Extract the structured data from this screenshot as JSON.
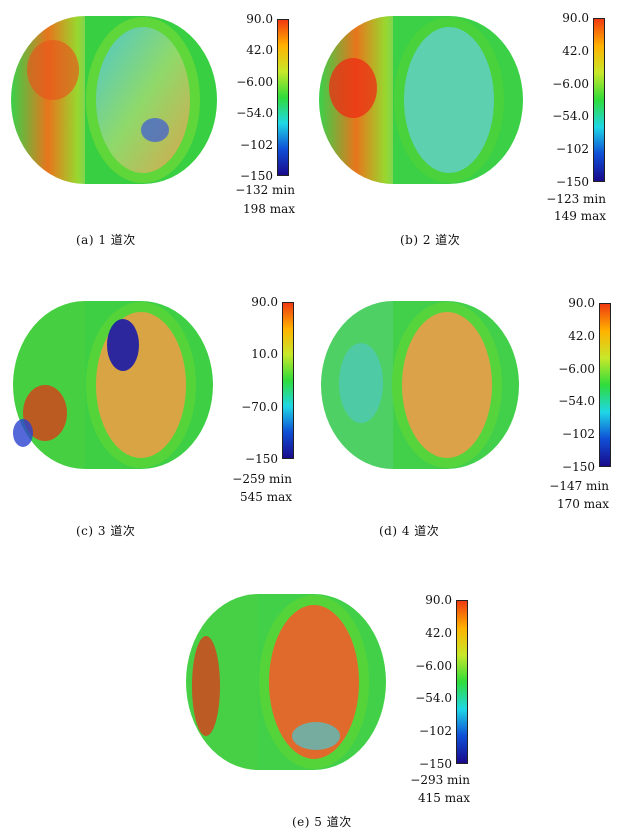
{
  "colorscale": [
    "#1a0a8c",
    "#0f4fd6",
    "#1fd7e6",
    "#2fdc3a",
    "#c8e82a",
    "#ffb200",
    "#f03a10"
  ],
  "panels": [
    {
      "id": "a",
      "caption": "(a) 1 道次",
      "ticks": [
        "90.0",
        "42.0",
        "−6.00",
        "−54.0",
        "−102",
        "−150"
      ],
      "min_label": "−132 min",
      "max_label": "198 max"
    },
    {
      "id": "b",
      "caption": "(b) 2 道次",
      "ticks": [
        "90.0",
        "42.0",
        "−6.00",
        "−54.0",
        "−102",
        "−150"
      ],
      "min_label": "−123 min",
      "max_label": "149 max"
    },
    {
      "id": "c",
      "caption": "(c) 3 道次",
      "ticks": [
        "90.0",
        "10.0",
        "−70.0",
        "−150"
      ],
      "min_label": "−259 min",
      "max_label": "545 max"
    },
    {
      "id": "d",
      "caption": "(d) 4 道次",
      "ticks": [
        "90.0",
        "42.0",
        "−6.00",
        "−54.0",
        "−102",
        "−150"
      ],
      "min_label": "−147 min",
      "max_label": "170 max"
    },
    {
      "id": "e",
      "caption": "(e) 5 道次",
      "ticks": [
        "90.0",
        "42.0",
        "−6.00",
        "−54.0",
        "−102",
        "−150"
      ],
      "min_label": "−293 min",
      "max_label": "415 max"
    }
  ]
}
